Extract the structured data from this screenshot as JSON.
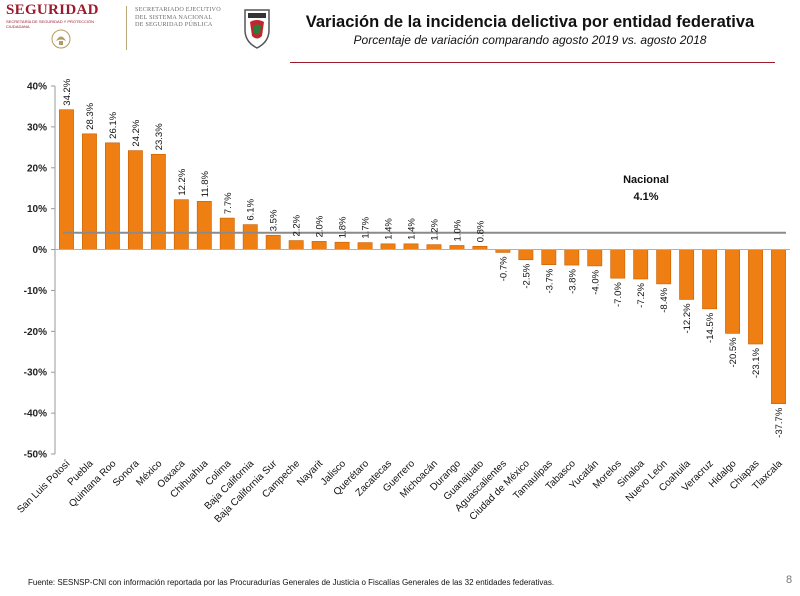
{
  "header": {
    "logo_text": "SEGURIDAD",
    "logo_subtext": "SECRETARÍA DE SEGURIDAD Y PROTECCIÓN CIUDADANA",
    "agency_lines": [
      "SECRETARIADO EJECUTIVO",
      "DEL SISTEMA NACIONAL",
      "DE SEGURIDAD PÚBLICA"
    ],
    "title": "Variación de la incidencia delictiva por entidad federativa",
    "subtitle": "Porcentaje de variación comparando agosto 2019 vs. agosto 2018"
  },
  "footer": {
    "source": "Fuente: SESNSP-CNI con información reportada por las Procuradurías Generales de Justicia o Fiscalías Generales de las 32 entidades federativas.",
    "page_number": "8"
  },
  "colors": {
    "bar": "#f07f13",
    "bar_edge": "#c75f00",
    "national_line": "#8a8a8a",
    "brand": "#9a1b2c"
  },
  "chart_data": {
    "type": "bar",
    "title": "Variación de la incidencia delictiva por entidad federativa",
    "subtitle": "Porcentaje de variación comparando agosto 2019 vs. agosto 2018",
    "xlabel": "",
    "ylabel": "",
    "categories": [
      "San Luis Potosí",
      "Puebla",
      "Quintana Roo",
      "Sonora",
      "México",
      "Oaxaca",
      "Chihuahua",
      "Colima",
      "Baja California",
      "Baja California Sur",
      "Campeche",
      "Nayarit",
      "Jalisco",
      "Querétaro",
      "Zacatecas",
      "Guerrero",
      "Michoacán",
      "Durango",
      "Guanajuato",
      "Aguascalientes",
      "Ciudad de México",
      "Tamaulipas",
      "Tabasco",
      "Yucatán",
      "Morelos",
      "Sinaloa",
      "Nuevo León",
      "Coahuila",
      "Veracruz",
      "Hidalgo",
      "Chiapas",
      "Tlaxcala"
    ],
    "values": [
      34.2,
      28.3,
      26.1,
      24.2,
      23.3,
      12.2,
      11.8,
      7.7,
      6.1,
      3.5,
      2.2,
      2.0,
      1.8,
      1.7,
      1.4,
      1.4,
      1.2,
      1.0,
      0.8,
      -0.7,
      -2.5,
      -3.7,
      -3.8,
      -4.0,
      -7.0,
      -7.2,
      -8.4,
      -12.2,
      -14.5,
      -20.5,
      -23.1,
      -37.7
    ],
    "data_labels": [
      "34.2%",
      "28.3%",
      "26.1%",
      "24.2%",
      "23.3%",
      "12.2%",
      "11.8%",
      "7.7%",
      "6.1%",
      "3.5%",
      "2.2%",
      "2.0%",
      "1.8%",
      "1.7%",
      "1.4%",
      "1.4%",
      "1.2%",
      "1.0%",
      "0.8%",
      "-0.7%",
      "-2.5%",
      "-3.7%",
      "-3.8%",
      "-4.0%",
      "-7.0%",
      "-7.2%",
      "-8.4%",
      "-12.2%",
      "-14.5%",
      "-20.5%",
      "-23.1%",
      "-37.7%"
    ],
    "ylim": [
      -50,
      40
    ],
    "yticks": [
      40,
      30,
      20,
      10,
      0,
      -10,
      -20,
      -30,
      -40,
      -50
    ],
    "ytick_labels": [
      "40%",
      "30%",
      "20%",
      "10%",
      "0%",
      "-10%",
      "-20%",
      "-30%",
      "-40%",
      "-50%"
    ],
    "grid": false,
    "reference_line": {
      "label": "Nacional",
      "value": 4.1,
      "value_label": "4.1%"
    }
  }
}
